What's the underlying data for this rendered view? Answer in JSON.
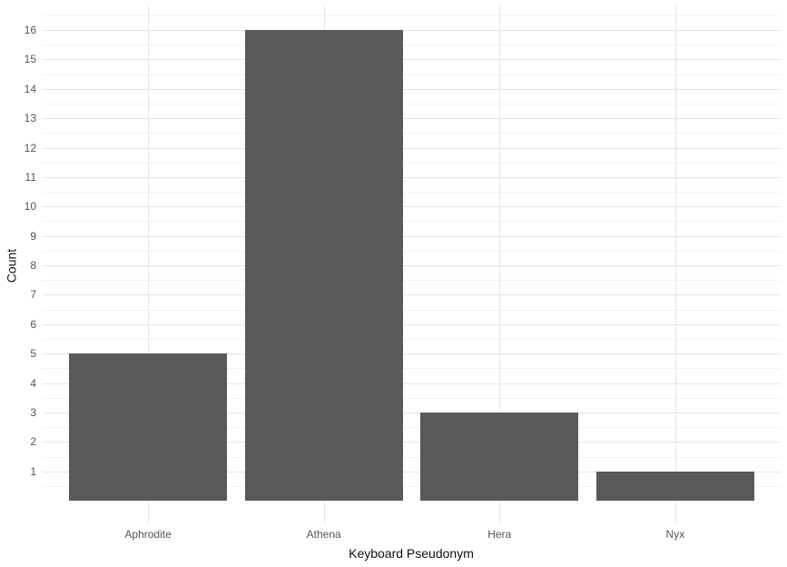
{
  "chart_data": {
    "type": "bar",
    "categories": [
      "Aphrodite",
      "Athena",
      "Hera",
      "Nyx"
    ],
    "values": [
      5,
      16,
      3,
      1
    ],
    "title": "",
    "xlabel": "Keyboard Pseudonym",
    "ylabel": "Count",
    "ylim": [
      -0.8,
      16.8
    ],
    "y_ticks": [
      1,
      2,
      3,
      4,
      5,
      6,
      7,
      8,
      9,
      10,
      11,
      12,
      13,
      14,
      15,
      16
    ],
    "y_minor_ticks": [
      0.5,
      1.5,
      2.5,
      3.5,
      4.5,
      5.5,
      6.5,
      7.5,
      8.5,
      9.5,
      10.5,
      11.5,
      12.5,
      13.5,
      14.5,
      15.5,
      16.5
    ],
    "bar_width_fraction": 0.9,
    "bar_color": "#595959",
    "background_color": "#ffffff",
    "major_grid_color": "#e5e5e5",
    "minor_grid_color": "#f2f2f2",
    "tick_label_color": "#555555",
    "axis_title_color": "#111111",
    "grid": "on",
    "legend": "none"
  }
}
